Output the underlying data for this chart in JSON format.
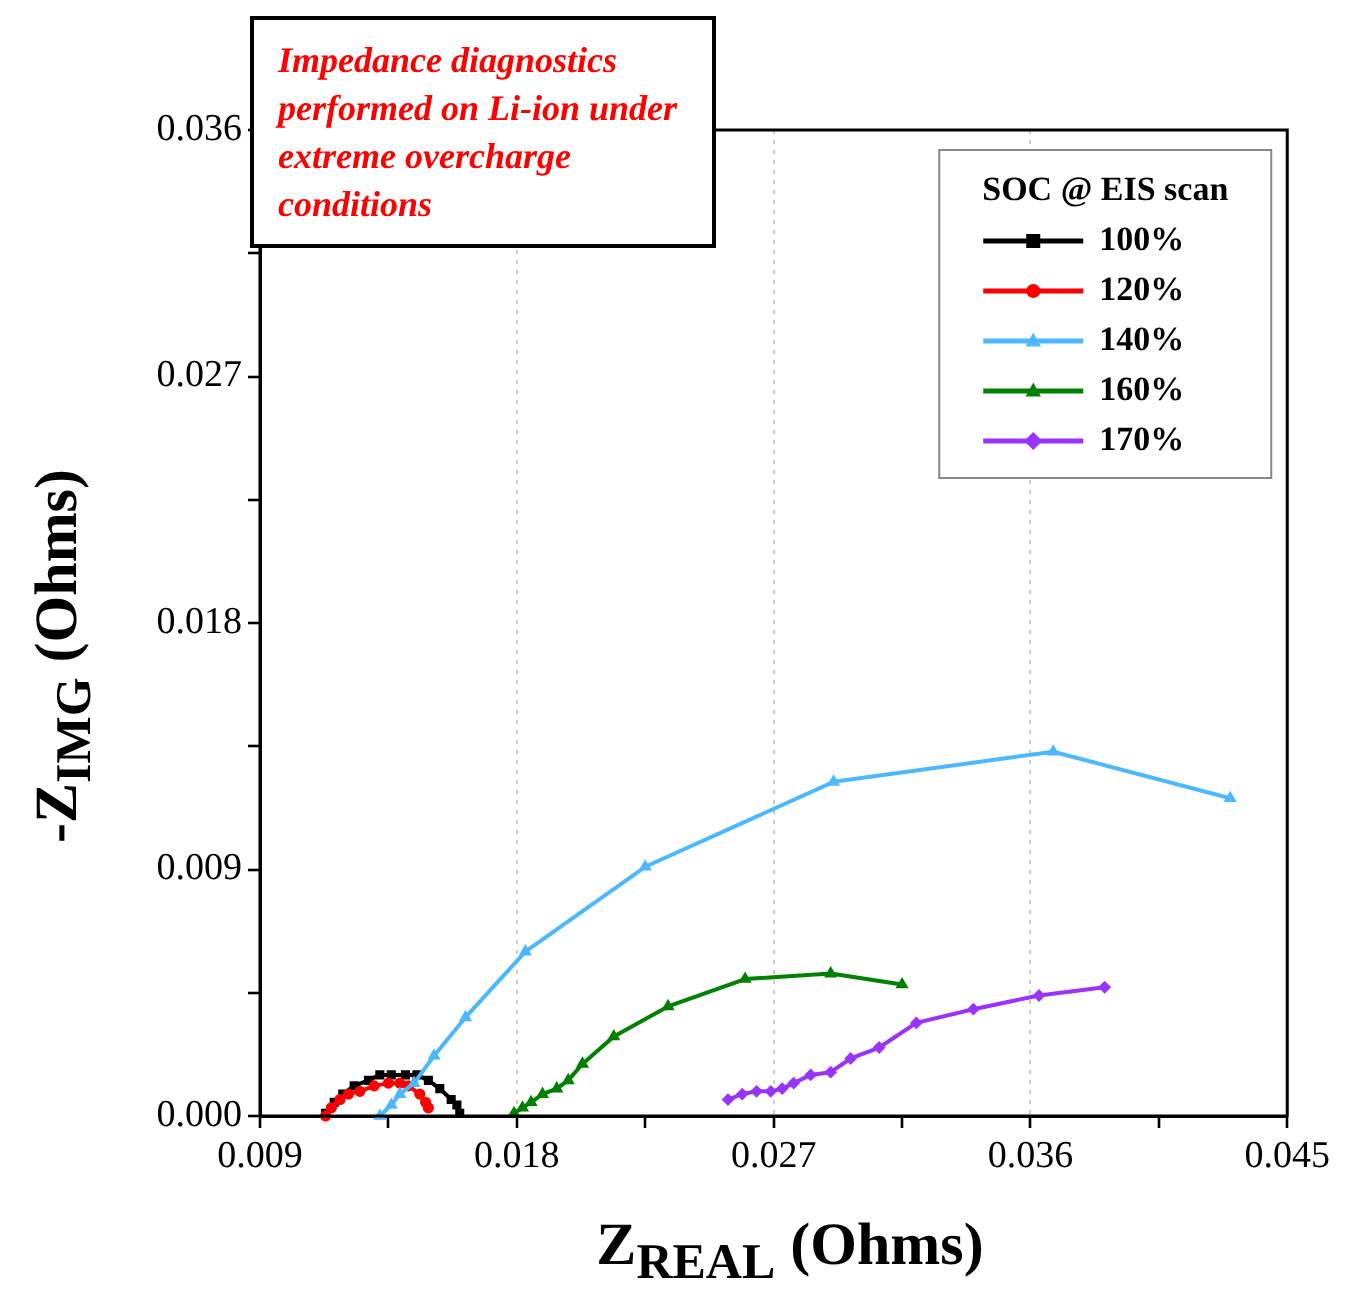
{
  "chart_data": {
    "type": "line",
    "xlabel": "Z$_{REAL}$ (Ohms)",
    "ylabel": "-Z$_{IMG}$ (Ohms)",
    "legend_title": "SOC @ EIS scan",
    "annotations": [
      "Impedance diagnostics performed on Li-ion under extreme overcharge conditions"
    ],
    "xlim": [
      0.009,
      0.045
    ],
    "ylim": [
      0,
      0.036
    ],
    "xticks": [
      0.009,
      {
        "value": 0.0135,
        "label": null
      },
      0.018,
      {
        "value": 0.0225,
        "label": null
      },
      0.027,
      {
        "value": 0.0315,
        "label": null
      },
      0.036,
      {
        "value": 0.0405,
        "label": null
      },
      0.045
    ],
    "yticks": [
      {
        "value": 0,
        "label": "0.000"
      },
      {
        "value": 0.0045,
        "label": null
      },
      0.009,
      {
        "value": 0.0135,
        "label": null
      },
      0.018,
      {
        "value": 0.0225,
        "label": null
      },
      0.027,
      {
        "value": 0.0315,
        "label": null
      },
      0.036
    ],
    "grid": "x",
    "legend": "top right",
    "line_style": "solid",
    "series": [
      {
        "name": "100%",
        "color": "#000000",
        "marker": "square",
        "x": [
          0.0113,
          0.0116,
          0.0119,
          0.0123,
          0.0128,
          0.0132,
          0.0136,
          0.0141,
          0.0145,
          0.0149,
          0.0153,
          0.0157,
          0.0159,
          0.016
        ],
        "values": [
          0.0001,
          0.0005,
          0.0008,
          0.0011,
          0.0013,
          0.0015,
          0.0015,
          0.0015,
          0.0015,
          0.0013,
          0.001,
          0.0006,
          0.0004,
          0.0001
        ]
      },
      {
        "name": "120%",
        "color": "#ff0000",
        "marker": "circle",
        "x": [
          0.0113,
          0.0115,
          0.0118,
          0.0121,
          0.0125,
          0.013,
          0.0135,
          0.0139,
          0.0142,
          0.0146,
          0.0148,
          0.0149
        ],
        "values": [
          0,
          0.0003,
          0.0006,
          0.0008,
          0.0009,
          0.0011,
          0.0012,
          0.0012,
          0.0011,
          0.0008,
          0.0005,
          0.0003
        ]
      },
      {
        "name": "140%",
        "color": "#4db8ff",
        "marker": "triangle",
        "x": [
          0.0132,
          0.0136,
          0.0139,
          0.0144,
          0.0151,
          0.0162,
          0.0183,
          0.0225,
          0.0291,
          0.0368,
          0.043
        ],
        "values": [
          0,
          0.0004,
          0.0008,
          0.0012,
          0.0022,
          0.0036,
          0.006,
          0.0091,
          0.0122,
          0.0133,
          0.0116
        ]
      },
      {
        "name": "160%",
        "color": "#008000",
        "marker": "triangle",
        "x": [
          0.0179,
          0.0182,
          0.0185,
          0.0189,
          0.0194,
          0.0198,
          0.0203,
          0.0214,
          0.0233,
          0.026,
          0.029,
          0.0315
        ],
        "values": [
          0.0001,
          0.0003,
          0.0005,
          0.0008,
          0.001,
          0.0013,
          0.0019,
          0.0029,
          0.004,
          0.005,
          0.0052,
          0.0048
        ]
      },
      {
        "name": "170%",
        "color": "#9933ff",
        "marker": "diamond",
        "x": [
          0.0254,
          0.0259,
          0.0264,
          0.0269,
          0.0273,
          0.0277,
          0.0283,
          0.029,
          0.0297,
          0.0307,
          0.032,
          0.034,
          0.0363,
          0.0386
        ],
        "values": [
          0.0006,
          0.0008,
          0.0009,
          0.0009,
          0.001,
          0.0012,
          0.0015,
          0.0016,
          0.0021,
          0.0025,
          0.0034,
          0.0039,
          0.0044,
          0.0047
        ]
      }
    ]
  }
}
